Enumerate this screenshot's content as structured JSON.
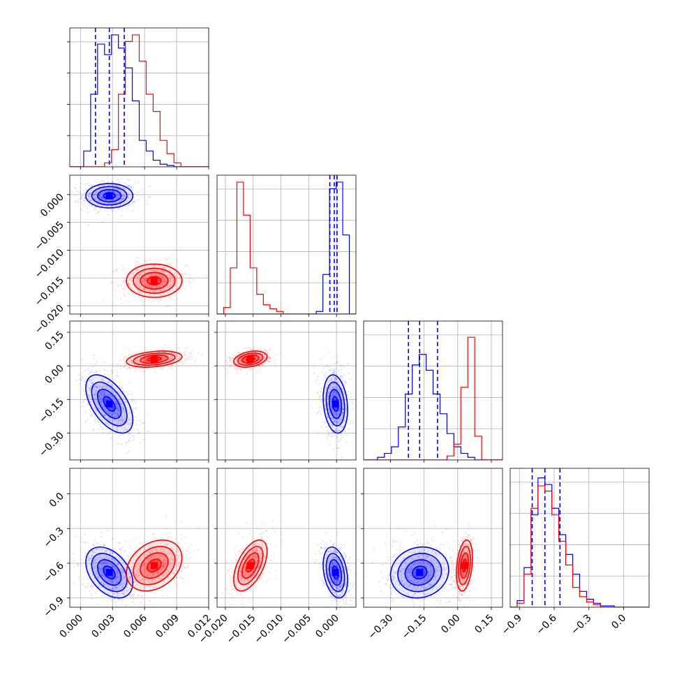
{
  "colors": {
    "blue": "#0000ff",
    "red": "#ff0000",
    "grid": "#b0b0b0"
  },
  "chart_data": {
    "type": "corner",
    "grid": true,
    "parameters": [
      {
        "range": [
          -0.001,
          0.012
        ],
        "ticks": [
          0.0,
          0.003,
          0.006,
          0.009,
          0.012
        ],
        "tick_labels": [
          "0.000",
          "0.003",
          "0.006",
          "0.009",
          "0.012"
        ]
      },
      {
        "range": [
          -0.0215,
          0.0035
        ],
        "ticks": [
          -0.02,
          -0.015,
          -0.01,
          -0.005,
          0.0
        ],
        "tick_labels": [
          "−0.020",
          "−0.015",
          "−0.010",
          "−0.005",
          "0.000"
        ]
      },
      {
        "range": [
          -0.42,
          0.2
        ],
        "ticks": [
          -0.3,
          -0.15,
          0.0,
          0.15
        ],
        "tick_labels": [
          "−0.30",
          "−0.15",
          "0.00",
          "0.15"
        ]
      },
      {
        "range": [
          -0.98,
          0.22
        ],
        "ticks": [
          -0.9,
          -0.6,
          -0.3,
          0.0
        ],
        "tick_labels": [
          "−0.9",
          "−0.6",
          "−0.3",
          "0.0"
        ]
      }
    ],
    "series": [
      {
        "color": "#0000ff",
        "means": [
          0.0027,
          -0.0002,
          -0.17,
          -0.68
        ],
        "sigmas": [
          0.0011,
          0.0011,
          0.065,
          0.11
        ],
        "quantiles": [
          [
            0.0014,
            0.0027,
            0.0041
          ],
          [
            -0.0012,
            -0.0004,
            0.0001
          ],
          [
            -0.22,
            -0.17,
            -0.09
          ],
          [
            -0.79,
            -0.68,
            -0.55
          ]
        ],
        "hist1d": [
          [
            0.0,
            0.0,
            0.12,
            0.55,
            0.93,
            0.85,
            1.0,
            0.9,
            0.75,
            0.5,
            0.2,
            0.12,
            0.05,
            0.02,
            0.01,
            0.0,
            0.0,
            0.0,
            0.0,
            0.0
          ],
          [
            0.0,
            0.0,
            0.0,
            0.0,
            0.0,
            0.0,
            0.0,
            0.0,
            0.0,
            0.0,
            0.0,
            0.0,
            0.0,
            0.0,
            0.0,
            0.02,
            0.3,
            0.95,
            1.0,
            0.6,
            0.0
          ],
          [
            0.0,
            0.0,
            0.02,
            0.05,
            0.1,
            0.25,
            0.5,
            0.72,
            0.8,
            0.68,
            0.5,
            0.35,
            0.2,
            0.1,
            0.05,
            0.02,
            0.0,
            0.0,
            0.0,
            0.0
          ],
          [
            0.0,
            0.05,
            0.3,
            0.7,
            0.98,
            0.93,
            0.75,
            0.55,
            0.4,
            0.25,
            0.12,
            0.06,
            0.03,
            0.01,
            0.01,
            0.0,
            0.0,
            0.0,
            0.0,
            0.0
          ]
        ]
      },
      {
        "color": "#ff0000",
        "means": [
          0.0069,
          -0.0155,
          0.03,
          -0.62
        ],
        "sigmas": [
          0.0013,
          0.0015,
          0.018,
          0.11
        ],
        "quantiles": [],
        "hist1d": [
          [
            0.0,
            0.0,
            0.0,
            0.0,
            0.0,
            0.03,
            0.13,
            0.55,
            0.95,
            1.0,
            0.8,
            0.55,
            0.42,
            0.2,
            0.1,
            0.03,
            0.0,
            0.0,
            0.0,
            0.0
          ],
          [
            0.0,
            0.05,
            0.35,
            1.0,
            0.75,
            0.35,
            0.15,
            0.07,
            0.04,
            0.02,
            0.0,
            0.0,
            0.0,
            0.0,
            0.0,
            0.0,
            0.0,
            0.0,
            0.0,
            0.0,
            0.0
          ],
          [
            0.0,
            0.0,
            0.0,
            0.0,
            0.0,
            0.0,
            0.0,
            0.0,
            0.0,
            0.0,
            0.0,
            0.0,
            0.03,
            0.12,
            0.55,
            0.93,
            0.18,
            0.0,
            0.0,
            0.0
          ],
          [
            0.0,
            0.03,
            0.25,
            0.75,
            0.92,
            0.88,
            0.7,
            0.5,
            0.32,
            0.15,
            0.08,
            0.04,
            0.02,
            0.0,
            0.0,
            0.0,
            0.0,
            0.0,
            0.0,
            0.0
          ]
        ]
      }
    ]
  }
}
